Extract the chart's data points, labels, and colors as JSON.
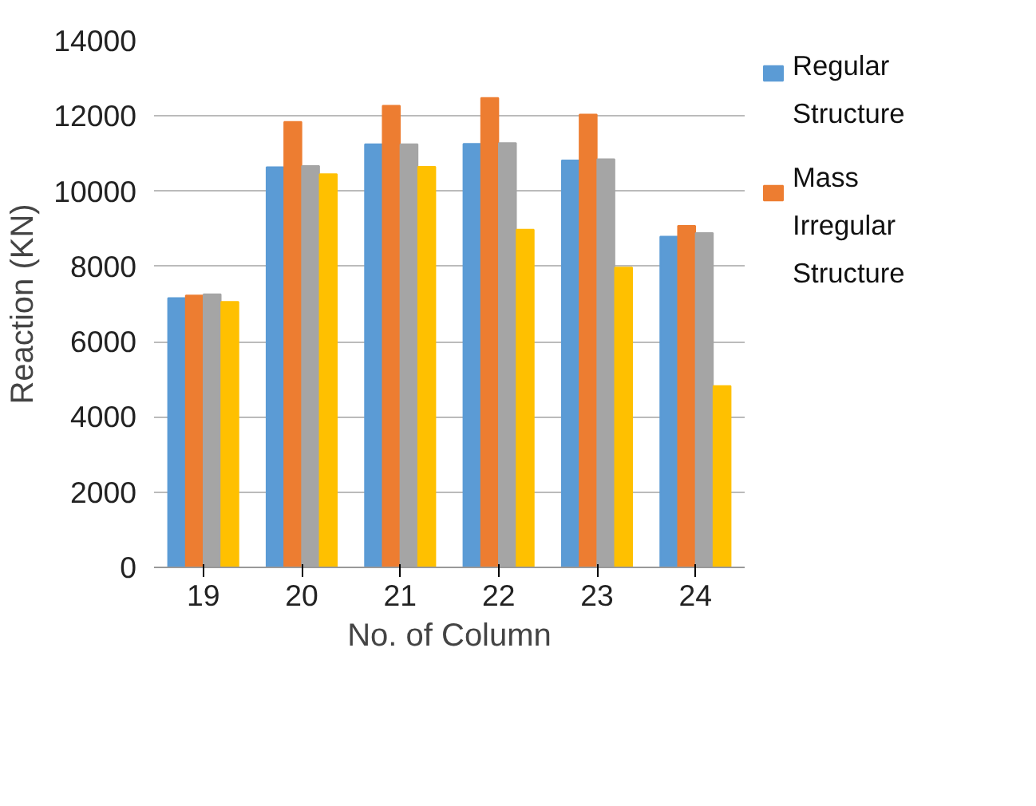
{
  "chart_data": {
    "type": "bar",
    "xlabel": "No. of Column",
    "ylabel": "Reaction (KN)",
    "categories": [
      "19",
      "20",
      "21",
      "22",
      "23",
      "24"
    ],
    "series": [
      {
        "name": "Regular Structure",
        "color": "#5b9bd5",
        "values": [
          7160,
          10640,
          11250,
          11260,
          10820,
          8790
        ]
      },
      {
        "name": "Mass Irregular Structure",
        "color": "#ed7d31",
        "values": [
          7230,
          11840,
          12270,
          12480,
          12040,
          9080
        ]
      },
      {
        "color": "#a5a5a5",
        "values": [
          7260,
          10670,
          11250,
          11280,
          10850,
          8890
        ]
      },
      {
        "color": "#ffc000",
        "values": [
          7060,
          10450,
          10650,
          8980,
          7970,
          4820
        ]
      }
    ],
    "ylim": [
      0,
      14000
    ],
    "yticks": [
      0,
      2000,
      4000,
      6000,
      8000,
      10000,
      12000,
      14000
    ],
    "grid": "y",
    "legend": "right"
  }
}
